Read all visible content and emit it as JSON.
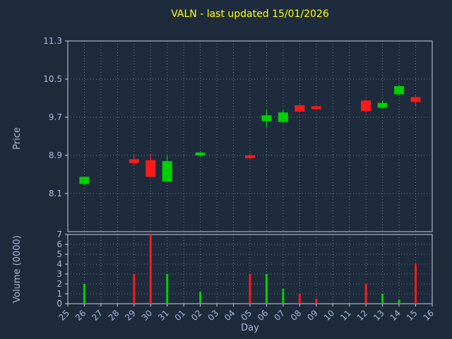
{
  "chart_data": {
    "type": "candlestick",
    "title": "VALN - last updated 15/01/2026",
    "xlabel": "Day",
    "ylabel_price": "Price",
    "ylabel_volume": "Volume (0000)",
    "x_ticks": [
      "25",
      "26",
      "27",
      "28",
      "29",
      "30",
      "31",
      "01",
      "02",
      "03",
      "04",
      "05",
      "06",
      "07",
      "08",
      "09",
      "10",
      "11",
      "12",
      "13",
      "14",
      "15",
      "16"
    ],
    "price_ticks": [
      8.1,
      8.9,
      9.7,
      10.5,
      11.3
    ],
    "price_ylim": [
      7.3,
      11.3
    ],
    "volume_ticks": [
      0,
      1,
      2,
      3,
      4,
      5,
      6,
      7
    ],
    "volume_ylim": [
      0,
      7
    ],
    "grid": "dotted",
    "legend": "none",
    "colors": {
      "up": "#00d000",
      "down": "#ff1a1a",
      "background": "#1e2b3d",
      "title": "#ffff00",
      "axis_text": "#a7b8d6",
      "grid": "#8090a0",
      "spine": "#c6ccd6"
    },
    "candles": [
      {
        "day": "26",
        "open": 8.3,
        "high": 8.45,
        "low": 8.28,
        "close": 8.45,
        "volume": 2.0
      },
      {
        "day": "29",
        "open": 8.82,
        "high": 8.9,
        "low": 8.68,
        "close": 8.74,
        "volume": 3.0
      },
      {
        "day": "30",
        "open": 8.8,
        "high": 8.92,
        "low": 8.45,
        "close": 8.45,
        "volume": 7.0
      },
      {
        "day": "31",
        "open": 8.35,
        "high": 8.9,
        "low": 8.35,
        "close": 8.78,
        "volume": 3.0
      },
      {
        "day": "02",
        "open": 8.9,
        "high": 8.97,
        "low": 8.88,
        "close": 8.96,
        "volume": 1.2
      },
      {
        "day": "05",
        "open": 8.9,
        "high": 8.95,
        "low": 8.82,
        "close": 8.84,
        "volume": 3.0
      },
      {
        "day": "06",
        "open": 9.62,
        "high": 9.85,
        "low": 9.48,
        "close": 9.74,
        "volume": 3.0
      },
      {
        "day": "07",
        "open": 9.6,
        "high": 9.85,
        "low": 9.58,
        "close": 9.8,
        "volume": 1.5
      },
      {
        "day": "08",
        "open": 9.95,
        "high": 9.97,
        "low": 9.8,
        "close": 9.82,
        "volume": 1.0
      },
      {
        "day": "09",
        "open": 9.93,
        "high": 9.96,
        "low": 9.85,
        "close": 9.87,
        "volume": 0.5
      },
      {
        "day": "12",
        "open": 10.05,
        "high": 10.07,
        "low": 9.8,
        "close": 9.83,
        "volume": 2.0
      },
      {
        "day": "13",
        "open": 9.9,
        "high": 10.05,
        "low": 9.88,
        "close": 10.0,
        "volume": 1.0
      },
      {
        "day": "14",
        "open": 10.18,
        "high": 10.38,
        "low": 10.16,
        "close": 10.35,
        "volume": 0.4
      },
      {
        "day": "15",
        "open": 10.12,
        "high": 10.15,
        "low": 9.92,
        "close": 10.02,
        "volume": 4.0
      }
    ]
  }
}
